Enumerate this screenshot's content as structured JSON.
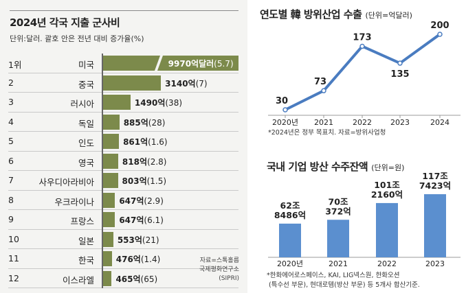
{
  "chart_data": [
    {
      "type": "bar",
      "orientation": "horizontal",
      "title": "2024년 각국 지출 군사비",
      "subtitle": "단위:달러. 괄호 안은 전년 대비 증가율(%)",
      "ranks": [
        "1위",
        "2",
        "3",
        "4",
        "5",
        "6",
        "7",
        "8",
        "9",
        "10",
        "11",
        "12"
      ],
      "categories": [
        "미국",
        "중국",
        "러시아",
        "독일",
        "인도",
        "영국",
        "사우디아라비아",
        "우크라이나",
        "프랑스",
        "일본",
        "한국",
        "이스라엘"
      ],
      "values": [
        9970,
        3140,
        1490,
        885,
        861,
        818,
        803,
        647,
        647,
        553,
        476,
        465
      ],
      "value_labels": [
        "9970억달러",
        "3140억",
        "1490억",
        "885억",
        "861억",
        "818억",
        "803억",
        "647억",
        "647억",
        "553억",
        "476억",
        "465억"
      ],
      "growth_labels": [
        "(5.7)",
        "(7)",
        "(38)",
        "(28)",
        "(1.6)",
        "(2.8)",
        "(1.5)",
        "(2.9)",
        "(6.1)",
        "(21)",
        "(1.4)",
        "(65)"
      ],
      "color": "#7c8a4b",
      "axis_break": "미국",
      "source": [
        "자료=스톡홀름",
        "국제평화연구소",
        "(SIPRI)"
      ]
    },
    {
      "type": "line",
      "title": "연도별 韓 방위산업 수출",
      "unit": "(단위=억달러)",
      "categories": [
        "2020년",
        "2021",
        "2022",
        "2023",
        "2024"
      ],
      "values": [
        30,
        73,
        173,
        135,
        200
      ],
      "color": "#4a7cc0",
      "note": "*2024년은 정부 목표치. 자료=방위사업청"
    },
    {
      "type": "bar",
      "title": "국내 기업 방산 수주잔액",
      "unit": "(단위=원)",
      "categories": [
        "2020년",
        "2021",
        "2022",
        "2023"
      ],
      "values": [
        628486,
        700372,
        1012160,
        1177423
      ],
      "value_labels": [
        [
          "62조",
          "8486억"
        ],
        [
          "70조",
          "372억"
        ],
        [
          "101조",
          "2160억"
        ],
        [
          "117조",
          "7423억"
        ]
      ],
      "color": "#5b8fcf",
      "note": [
        "*한화에어로스페이스, KAI, LIG넥스원, 한화오션",
        "(특수선 부문), 현대로템(방산 부문) 등 5개사 합산기준."
      ]
    }
  ]
}
